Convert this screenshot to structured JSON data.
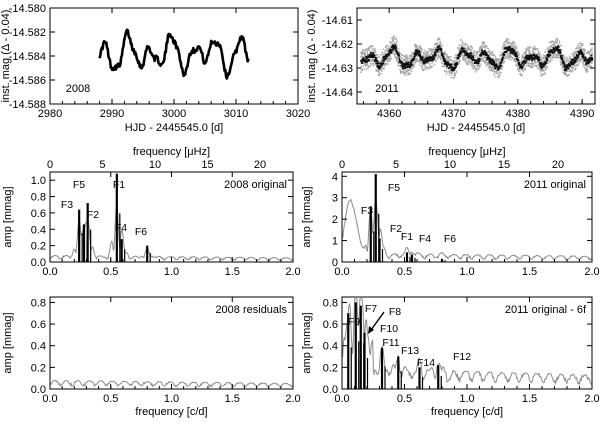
{
  "chart_data": [
    {
      "id": "lc2008",
      "type": "line",
      "title": "",
      "year_label": "2008",
      "xlabel": "HJD - 2445545.0 [d]",
      "ylabel": "inst. mag (Δ - 0.04)",
      "xlim": [
        2980,
        3020
      ],
      "ylim": [
        -14.58,
        -14.588
      ],
      "xticks": [
        "2980",
        "2990",
        "3000",
        "3010",
        "3020"
      ],
      "yticks": [
        "-14.588",
        "-14.586",
        "-14.584",
        "-14.582",
        "-14.580"
      ],
      "ytick_values": [
        -14.588,
        -14.586,
        -14.584,
        -14.582,
        -14.58
      ],
      "xtick_values": [
        2980,
        2990,
        3000,
        3010,
        3020
      ],
      "data_range": [
        2988,
        3012
      ],
      "mean": -14.5838,
      "amplitude": 0.0018
    },
    {
      "id": "lc2011",
      "type": "scatter",
      "title": "",
      "year_label": "2011",
      "xlabel": "HJD - 2445545.0 [d]",
      "ylabel": "inst. mag (Δ - 0.04)",
      "xlim": [
        4355,
        4392
      ],
      "ylim": [
        -14.605,
        -14.645
      ],
      "xticks": [
        "4360",
        "4370",
        "4380",
        "4390"
      ],
      "xtick_values": [
        4360,
        4370,
        4380,
        4390
      ],
      "yticks": [
        "-14.61",
        "-14.62",
        "-14.63",
        "-14.64"
      ],
      "ytick_values": [
        -14.61,
        -14.62,
        -14.63,
        -14.64
      ],
      "data_range": [
        4355.5,
        4391.5
      ],
      "mean": -14.6255,
      "amplitude": 0.005
    },
    {
      "id": "amp2008",
      "type": "line",
      "label": "2008 original",
      "xlabel": "",
      "top_xlabel": "frequency [μHz]",
      "ylabel": "amp [mmag]",
      "xlim": [
        0,
        2.0
      ],
      "ylim": [
        0,
        1.1
      ],
      "xticks": [
        "0.0",
        "0.5",
        "1.0",
        "1.5",
        "2.0"
      ],
      "xtick_values": [
        0,
        0.5,
        1.0,
        1.5,
        2.0
      ],
      "yticks": [
        "0.0",
        "0.2",
        "0.4",
        "0.6",
        "0.8",
        "1.0"
      ],
      "ytick_values": [
        0,
        0.2,
        0.4,
        0.6,
        0.8,
        1.0
      ],
      "top_xticks": [
        "0",
        "5",
        "10",
        "15",
        "20"
      ],
      "top_xtick_values": [
        0,
        5,
        10,
        15,
        20
      ],
      "peaks": [
        {
          "label": "F1",
          "freq": 0.55,
          "amp": 1.08
        },
        {
          "label": "F5",
          "freq": 0.31,
          "amp": 0.72
        },
        {
          "label": "F3",
          "freq": 0.24,
          "amp": 0.64
        },
        {
          "label": "F2",
          "freq": 0.28,
          "amp": 0.46
        },
        {
          "label": "F4",
          "freq": 0.59,
          "amp": 0.28
        },
        {
          "label": "F6",
          "freq": 0.8,
          "amp": 0.2
        }
      ]
    },
    {
      "id": "amp2011",
      "type": "line",
      "label": "2011 original",
      "xlabel": "",
      "top_xlabel": "frequency [μHz]",
      "ylabel": "amp [mmag]",
      "xlim": [
        0,
        2.0
      ],
      "ylim": [
        0,
        4.2
      ],
      "xticks": [
        "0.0",
        "0.5",
        "1.0",
        "1.5",
        "2.0"
      ],
      "xtick_values": [
        0,
        0.5,
        1.0,
        1.5,
        2.0
      ],
      "yticks": [
        "0",
        "1",
        "2",
        "3",
        "4"
      ],
      "ytick_values": [
        0,
        1,
        2,
        3,
        4
      ],
      "top_xticks": [
        "0",
        "5",
        "10",
        "15",
        "20"
      ],
      "top_xtick_values": [
        0,
        5,
        10,
        15,
        20
      ],
      "peaks": [
        {
          "label": "F5",
          "freq": 0.27,
          "amp": 4.1
        },
        {
          "label": "F3",
          "freq": 0.23,
          "amp": 2.6
        },
        {
          "label": "F2",
          "freq": 0.3,
          "amp": 1.1
        },
        {
          "label": "F1",
          "freq": 0.52,
          "amp": 0.45
        },
        {
          "label": "F4",
          "freq": 0.56,
          "amp": 0.35
        },
        {
          "label": "F6",
          "freq": 0.8,
          "amp": 0.15
        }
      ]
    },
    {
      "id": "res2008",
      "type": "line",
      "label": "2008 residuals",
      "xlabel": "frequency [c/d]",
      "ylabel": "amp [mmag]",
      "xlim": [
        0,
        2.0
      ],
      "ylim": [
        0,
        0.85
      ],
      "xticks": [
        "0.0",
        "0.5",
        "1.0",
        "1.5",
        "2.0"
      ],
      "xtick_values": [
        0,
        0.5,
        1.0,
        1.5,
        2.0
      ],
      "yticks": [
        "0.0",
        "0.2",
        "0.4",
        "0.6",
        "0.8"
      ],
      "ytick_values": [
        0,
        0.2,
        0.4,
        0.6,
        0.8
      ],
      "peaks": []
    },
    {
      "id": "res2011",
      "type": "line",
      "label": "2011 original - 6f",
      "xlabel": "frequency [c/d]",
      "ylabel": "amp [mmag]",
      "xlim": [
        0,
        2.0
      ],
      "ylim": [
        0,
        0.85
      ],
      "xticks": [
        "0.0",
        "0.5",
        "1.0",
        "1.5",
        "2.0"
      ],
      "xtick_values": [
        0,
        0.5,
        1.0,
        1.5,
        2.0
      ],
      "yticks": [
        "0.0",
        "0.2",
        "0.4",
        "0.6",
        "0.8"
      ],
      "ytick_values": [
        0,
        0.2,
        0.4,
        0.6,
        0.8
      ],
      "peaks": [
        {
          "label": "F9",
          "freq": 0.05,
          "amp": 0.7
        },
        {
          "label": "F7",
          "freq": 0.11,
          "amp": 0.8
        },
        {
          "label": "F8",
          "freq": 0.15,
          "amp": 0.77
        },
        {
          "label": "F10",
          "freq": 0.18,
          "amp": 0.52
        },
        {
          "label": "F11",
          "freq": 0.32,
          "amp": 0.38
        },
        {
          "label": "F13",
          "freq": 0.45,
          "amp": 0.3
        },
        {
          "label": "F14",
          "freq": 0.62,
          "amp": 0.2
        },
        {
          "label": "F12",
          "freq": 0.77,
          "amp": 0.22
        }
      ]
    }
  ]
}
